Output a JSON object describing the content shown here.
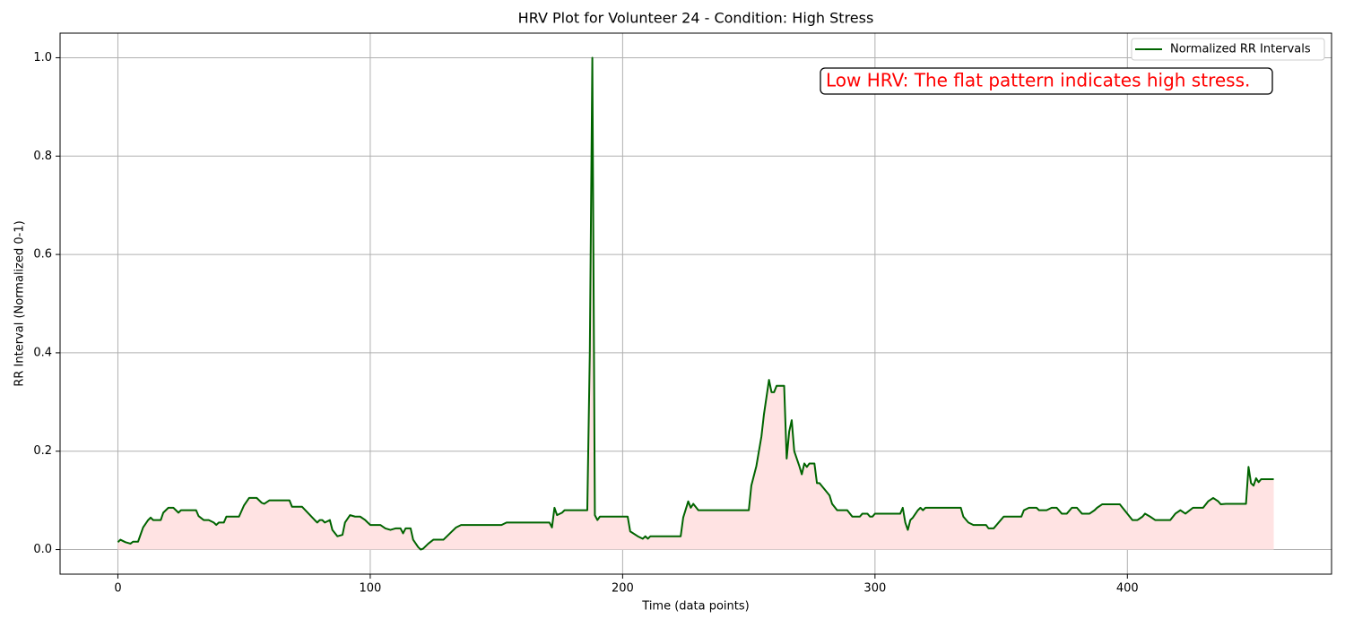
{
  "chart_data": {
    "type": "line",
    "title": "HRV Plot for Volunteer 24 - Condition: High Stress",
    "x_label": "Time (data points)",
    "y_label": "RR Interval (Normalized 0-1)",
    "annotation": "Low HRV: The flat pattern indicates high stress.",
    "annotation_color": "#ff0000",
    "legend_position": "upper right",
    "grid": true,
    "fill_color": "#ffe3e3",
    "xlim": [
      -22.9,
      480.9
    ],
    "ylim": [
      -0.05,
      1.05
    ],
    "xticks": [
      0,
      100,
      200,
      300,
      400
    ],
    "yticks": [
      {
        "value": 0.0,
        "label": "0.0"
      },
      0.2,
      0.4,
      0.6,
      0.8,
      {
        "value": 1.0,
        "label": "1.0"
      }
    ],
    "x": [
      0,
      1,
      3,
      5,
      6,
      8,
      10,
      12,
      13,
      14,
      17,
      18,
      20,
      22,
      24,
      25,
      31,
      32,
      34,
      36,
      38,
      39,
      40,
      42,
      43,
      48,
      50,
      52,
      55,
      57,
      58,
      60,
      68,
      69,
      73,
      78,
      79,
      80,
      81,
      82,
      84,
      85,
      87,
      89,
      90,
      92,
      94,
      96,
      98,
      99,
      100,
      104,
      106,
      108,
      110,
      112,
      113,
      114,
      116,
      117,
      119,
      120,
      121,
      123,
      125,
      129,
      132,
      134,
      136,
      152,
      154,
      171,
      172,
      173,
      174,
      176,
      177,
      186,
      187,
      188,
      189,
      190,
      191,
      202,
      203,
      206,
      208,
      209,
      210,
      211,
      223,
      224,
      226,
      227,
      228,
      230,
      250,
      251,
      253,
      255,
      256,
      258,
      259,
      260,
      261,
      264,
      265,
      266,
      267,
      268,
      270,
      271,
      272,
      273,
      274,
      276,
      277,
      278,
      282,
      283,
      285,
      289,
      291,
      294,
      295,
      297,
      298,
      299,
      300,
      310,
      311,
      312,
      313,
      314,
      315,
      317,
      318,
      319,
      320,
      334,
      335,
      337,
      339,
      344,
      345,
      347,
      351,
      358,
      359,
      361,
      364,
      365,
      368,
      370,
      372,
      374,
      376,
      378,
      380,
      382,
      385,
      387,
      388,
      390,
      397,
      402,
      404,
      406,
      407,
      409,
      411,
      417,
      419,
      421,
      423,
      426,
      430,
      432,
      434,
      436,
      437,
      439,
      447,
      448,
      449,
      450,
      451,
      452,
      453,
      458
    ],
    "series": [
      {
        "name": "Normalized RR Intervals",
        "color": "#006400",
        "values": [
          0.015,
          0.02,
          0.015,
          0.012,
          0.016,
          0.016,
          0.045,
          0.06,
          0.065,
          0.06,
          0.06,
          0.075,
          0.085,
          0.085,
          0.075,
          0.08,
          0.08,
          0.068,
          0.06,
          0.06,
          0.055,
          0.05,
          0.055,
          0.055,
          0.067,
          0.067,
          0.09,
          0.105,
          0.105,
          0.095,
          0.093,
          0.1,
          0.1,
          0.087,
          0.087,
          0.06,
          0.055,
          0.06,
          0.06,
          0.055,
          0.06,
          0.04,
          0.027,
          0.03,
          0.055,
          0.07,
          0.067,
          0.067,
          0.06,
          0.055,
          0.05,
          0.05,
          0.043,
          0.04,
          0.043,
          0.043,
          0.033,
          0.043,
          0.043,
          0.02,
          0.005,
          0,
          0.002,
          0.012,
          0.02,
          0.02,
          0.035,
          0.045,
          0.05,
          0.05,
          0.055,
          0.055,
          0.045,
          0.085,
          0.07,
          0.075,
          0.08,
          0.08,
          0.4,
          1.0,
          0.07,
          0.06,
          0.067,
          0.067,
          0.037,
          0.027,
          0.022,
          0.027,
          0.022,
          0.027,
          0.027,
          0.065,
          0.098,
          0.085,
          0.093,
          0.08,
          0.08,
          0.13,
          0.17,
          0.23,
          0.275,
          0.345,
          0.32,
          0.32,
          0.333,
          0.333,
          0.185,
          0.24,
          0.263,
          0.2,
          0.17,
          0.153,
          0.175,
          0.168,
          0.175,
          0.175,
          0.135,
          0.135,
          0.11,
          0.093,
          0.08,
          0.08,
          0.067,
          0.067,
          0.073,
          0.073,
          0.067,
          0.067,
          0.073,
          0.073,
          0.085,
          0.055,
          0.04,
          0.06,
          0.065,
          0.08,
          0.085,
          0.08,
          0.085,
          0.085,
          0.067,
          0.055,
          0.05,
          0.05,
          0.043,
          0.043,
          0.067,
          0.067,
          0.08,
          0.085,
          0.085,
          0.08,
          0.08,
          0.085,
          0.085,
          0.073,
          0.073,
          0.085,
          0.085,
          0.073,
          0.073,
          0.08,
          0.085,
          0.092,
          0.092,
          0.06,
          0.06,
          0.067,
          0.073,
          0.067,
          0.06,
          0.06,
          0.073,
          0.08,
          0.073,
          0.085,
          0.085,
          0.098,
          0.105,
          0.098,
          0.092,
          0.093,
          0.093,
          0.168,
          0.135,
          0.13,
          0.145,
          0.137,
          0.143,
          0.143
        ]
      }
    ]
  }
}
